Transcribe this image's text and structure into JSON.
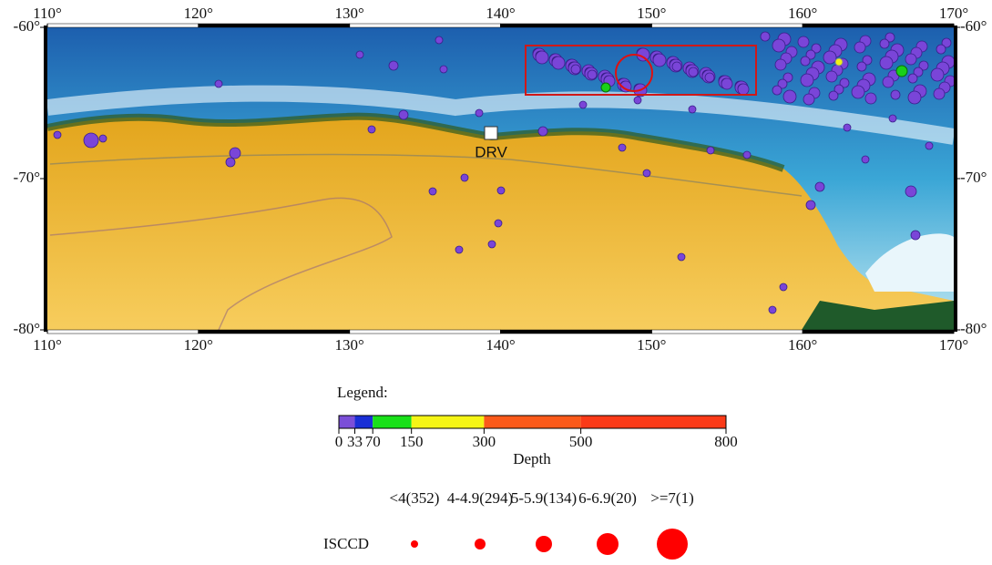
{
  "map": {
    "lon_ticks": [
      {
        "value": 110,
        "label": "110°"
      },
      {
        "value": 120,
        "label": "120°"
      },
      {
        "value": 130,
        "label": "130°"
      },
      {
        "value": 140,
        "label": "140°"
      },
      {
        "value": 150,
        "label": "150°"
      },
      {
        "value": 160,
        "label": "160°"
      },
      {
        "value": 170,
        "label": "170°"
      }
    ],
    "lat_ticks": [
      {
        "value": -60,
        "label": "-60°"
      },
      {
        "value": -70,
        "label": "-70°"
      },
      {
        "value": -80,
        "label": "-80°"
      }
    ],
    "station": "DRV"
  },
  "legend": {
    "title": "Legend:",
    "depth_ticks": [
      0,
      33,
      70,
      150,
      300,
      500,
      800
    ],
    "depth_colors": [
      "#7b4fd8",
      "#1a2fd6",
      "#19e019",
      "#f5f516",
      "#fb5a1a",
      "#fb3a18",
      "#fb1414"
    ],
    "depth_title": "Depth",
    "magnitude_labels": [
      "<4(352)",
      "4-4.9(294)",
      "5-5.9(134)",
      "6-6.9(20)",
      ">=7(1)"
    ],
    "catalog": "ISCCD"
  }
}
